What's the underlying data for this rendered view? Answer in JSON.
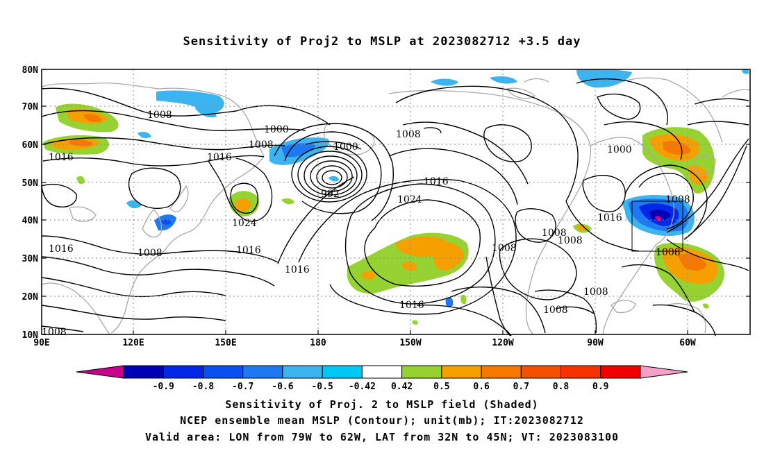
{
  "title": "Sensitivity of Proj2 to MSLP at 2023082712 +3.5 day",
  "lat_labels": [
    "80N",
    "70N",
    "60N",
    "50N",
    "40N",
    "30N",
    "20N",
    "10N"
  ],
  "lon_labels": [
    "90E",
    "120E",
    "150E",
    "180",
    "150W",
    "120W",
    "90W",
    "60W"
  ],
  "contour_labels": [
    {
      "text": "1008",
      "key": "c1"
    },
    {
      "text": "1000",
      "key": "c2"
    },
    {
      "text": "1008",
      "key": "c3"
    },
    {
      "text": "1000",
      "key": "c4"
    },
    {
      "text": "1008",
      "key": "c5"
    },
    {
      "text": "1016",
      "key": "c6"
    },
    {
      "text": "1016",
      "key": "c7"
    },
    {
      "text": "992",
      "key": "c8"
    },
    {
      "text": "1016",
      "key": "c9"
    },
    {
      "text": "1024",
      "key": "c10"
    },
    {
      "text": "1024",
      "key": "c11"
    },
    {
      "text": "1016",
      "key": "c12"
    },
    {
      "text": "1008",
      "key": "c13"
    },
    {
      "text": "1016",
      "key": "c14"
    },
    {
      "text": "1016",
      "key": "c15"
    },
    {
      "text": "1008",
      "key": "c16"
    },
    {
      "text": "1008",
      "key": "c17"
    },
    {
      "text": "1008",
      "key": "c18"
    },
    {
      "text": "1016",
      "key": "c19"
    },
    {
      "text": "1000",
      "key": "c20"
    },
    {
      "text": "1008",
      "key": "c21"
    },
    {
      "text": "1008",
      "key": "c22"
    },
    {
      "text": "1008",
      "key": "c23"
    },
    {
      "text": "1016",
      "key": "c24"
    },
    {
      "text": "1008",
      "key": "c25"
    },
    {
      "text": "1008",
      "key": "c26"
    }
  ],
  "colorbar": {
    "labels": [
      "-0.9",
      "-0.8",
      "-0.7",
      "-0.6",
      "-0.5",
      "-0.42",
      "0.42",
      "0.5",
      "0.6",
      "0.7",
      "0.8",
      "0.9"
    ],
    "colors": [
      "#c8008c",
      "#0000b4",
      "#0028e6",
      "#0a50f0",
      "#1e78f0",
      "#3cb4f0",
      "#00c8f5",
      "#ffffff",
      "#96d232",
      "#f5a000",
      "#f57800",
      "#f55000",
      "#f53200",
      "#f00000",
      "#f5a0c8"
    ]
  },
  "captions": {
    "line1": "Sensitivity of Proj. 2 to MSLP field (Shaded)",
    "line2": "NCEP ensemble mean MSLP (Contour); unit(mb); IT:2023082712",
    "line3": "Valid area: LON from 79W to 62W, LAT from 32N to 45N; VT: 2023083100"
  }
}
